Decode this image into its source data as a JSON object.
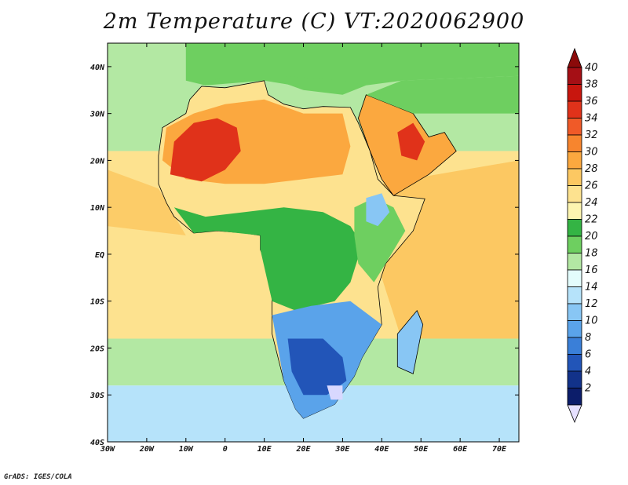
{
  "title": "2m Temperature (C) VT:2020062900",
  "credit": "GrADS: IGES/COLA",
  "map": {
    "lon_range": [
      -30,
      75
    ],
    "lat_range": [
      -40,
      45
    ],
    "lon_ticks": [
      {
        "value": -30,
        "label": "30W"
      },
      {
        "value": -20,
        "label": "20W"
      },
      {
        "value": -10,
        "label": "10W"
      },
      {
        "value": 0,
        "label": "0"
      },
      {
        "value": 10,
        "label": "10E"
      },
      {
        "value": 20,
        "label": "20E"
      },
      {
        "value": 30,
        "label": "30E"
      },
      {
        "value": 40,
        "label": "40E"
      },
      {
        "value": 50,
        "label": "50E"
      },
      {
        "value": 60,
        "label": "60E"
      },
      {
        "value": 70,
        "label": "70E"
      }
    ],
    "lat_ticks": [
      {
        "value": 40,
        "label": "40N"
      },
      {
        "value": 30,
        "label": "30N"
      },
      {
        "value": 20,
        "label": "20N"
      },
      {
        "value": 10,
        "label": "10N"
      },
      {
        "value": 0,
        "label": "EQ"
      },
      {
        "value": -10,
        "label": "10S"
      },
      {
        "value": -20,
        "label": "20S"
      },
      {
        "value": -30,
        "label": "30S"
      },
      {
        "value": -40,
        "label": "40S"
      }
    ]
  },
  "colorbar": {
    "levels": [
      {
        "label": "40",
        "color": "#a50f15"
      },
      {
        "label": "38",
        "color": "#c8160e"
      },
      {
        "label": "36",
        "color": "#e0321a"
      },
      {
        "label": "34",
        "color": "#f05a28"
      },
      {
        "label": "32",
        "color": "#f7852e"
      },
      {
        "label": "30",
        "color": "#fba83f"
      },
      {
        "label": "28",
        "color": "#fcc862"
      },
      {
        "label": "26",
        "color": "#fde28f"
      },
      {
        "label": "24",
        "color": "#fdf5b0"
      },
      {
        "label": "22",
        "color": "#34b444"
      },
      {
        "label": "20",
        "color": "#6ecf60"
      },
      {
        "label": "18",
        "color": "#b3e8a3"
      },
      {
        "label": "16",
        "color": "#e3fcfc"
      },
      {
        "label": "14",
        "color": "#b6e3fa"
      },
      {
        "label": "12",
        "color": "#88c6f4"
      },
      {
        "label": "10",
        "color": "#5aa3ea"
      },
      {
        "label": "8",
        "color": "#3a7fd8"
      },
      {
        "label": "6",
        "color": "#2255b8"
      },
      {
        "label": "4",
        "color": "#12328a"
      },
      {
        "label": "2",
        "color": "#0c1d6a"
      }
    ],
    "top_arrow_color": "#8b0a0a",
    "bottom_arrow_color": "#e6e0ff"
  },
  "regions": {
    "ocean_north_atlantic": "#b3e8a3",
    "ocean_tropical_atlantic": "#fde28f",
    "ocean_south_atlantic": "#b6e3fa",
    "ocean_indian": "#fcc862",
    "sahara": "#fba83f",
    "sahara_hot": "#e0321a",
    "sahel": "#fde28f",
    "congo": "#34b444",
    "east_africa": "#6ecf60",
    "south_africa": "#5aa3ea",
    "south_africa_cold": "#2255b8",
    "lesotho_cold": "#d8d8ff",
    "mediterranean": "#6ecf60",
    "europe": "#6ecf60",
    "arabia": "#fba83f",
    "arabia_hot": "#e0321a",
    "ethiopian_highlands": "#88c6f4",
    "madagascar": "#88c6f4"
  }
}
